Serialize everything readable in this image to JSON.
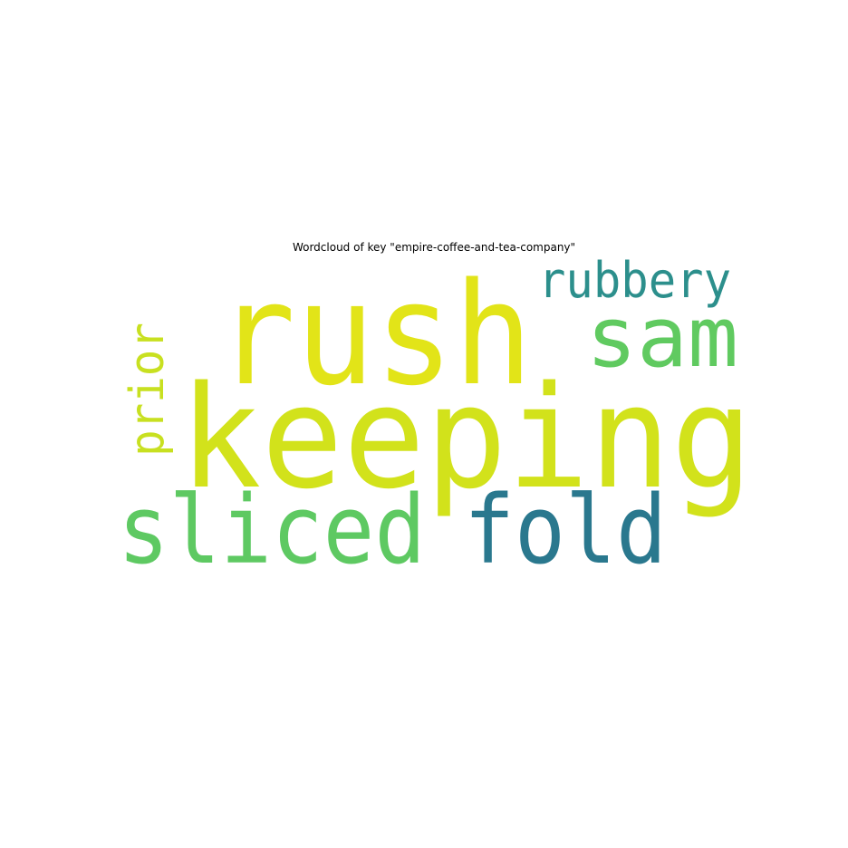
{
  "chart_data": {
    "type": "wordcloud",
    "title": "Wordcloud of key \"empire-coffee-and-tea-company\"",
    "words": [
      {
        "text": "keeping",
        "color": "#d2e21b"
      },
      {
        "text": "rush",
        "color": "#e2e418"
      },
      {
        "text": "sliced",
        "color": "#5ec962"
      },
      {
        "text": "fold",
        "color": "#2a788e"
      },
      {
        "text": "sam",
        "color": "#60ca60"
      },
      {
        "text": "rubbery",
        "color": "#2c8f8c"
      },
      {
        "text": "prior",
        "color": "#c8e020"
      }
    ]
  }
}
